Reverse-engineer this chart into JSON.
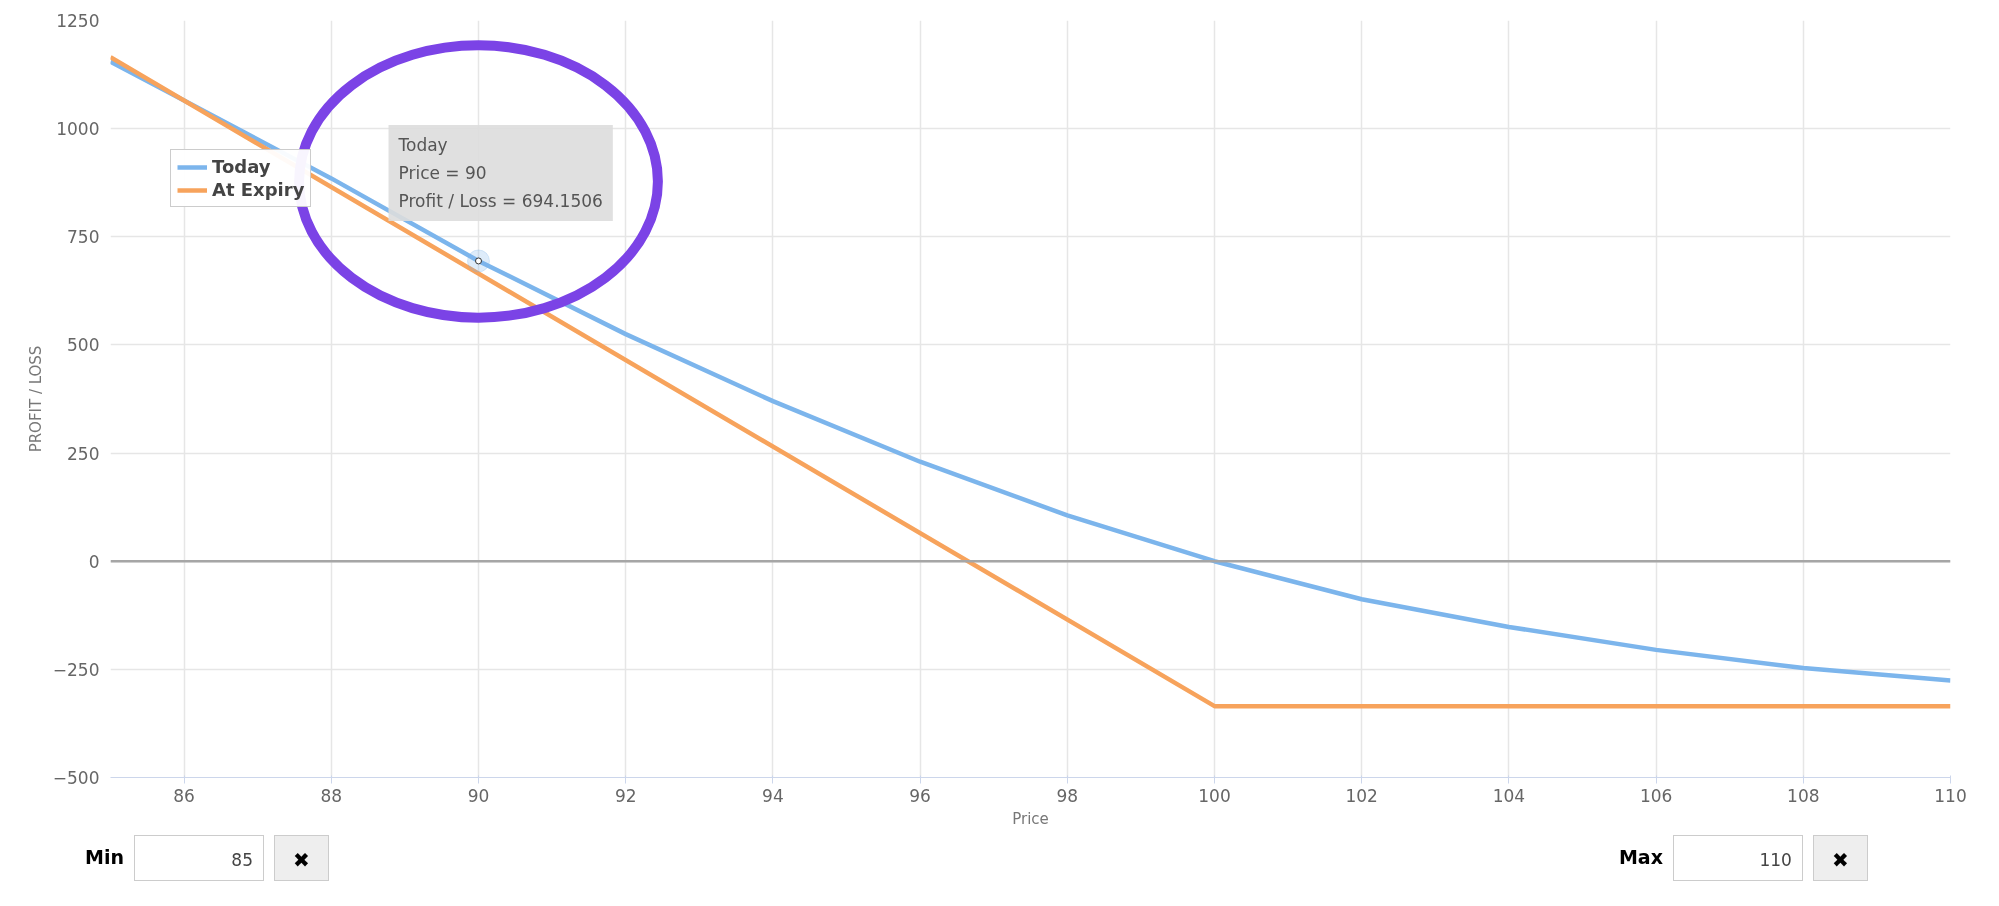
{
  "chart_data": {
    "type": "line",
    "xlabel": "Price",
    "ylabel": "PROFIT / LOSS",
    "xlim": [
      85,
      110
    ],
    "xticks": [
      86,
      88,
      90,
      92,
      94,
      96,
      98,
      100,
      102,
      104,
      106,
      108,
      110
    ],
    "ylim": [
      -500,
      1250
    ],
    "yticks": [
      -500,
      -250,
      0,
      250,
      500,
      750,
      1000,
      1250
    ],
    "grid": true,
    "legend": "top left",
    "marker": "none",
    "line_style": "solid",
    "ref_lines": [
      {
        "axis": "y",
        "value": 0,
        "color": "#a6a6a6"
      }
    ],
    "series": [
      {
        "name": "Today",
        "color": "#7cb5ec",
        "x": [
          85,
          86,
          88,
          90,
          92,
          94,
          96,
          98,
          100,
          102,
          104,
          106,
          108,
          110
        ],
        "values": [
          1155,
          1065,
          885,
          694.1506,
          525,
          370,
          230,
          106,
          0,
          -88,
          -152,
          -205,
          -247,
          -276
        ]
      },
      {
        "name": "At Expiry",
        "color": "#f7a35c",
        "x": [
          85,
          100,
          110
        ],
        "values": [
          1165,
          -335,
          -335
        ]
      }
    ],
    "annotations": [
      {
        "text": "Today\nPrice = 90\nProfit / Loss = 694.1506",
        "x": 90,
        "y": 694.1506
      },
      "Min",
      "85",
      "✖",
      "Max",
      "110",
      "✖"
    ]
  }
}
